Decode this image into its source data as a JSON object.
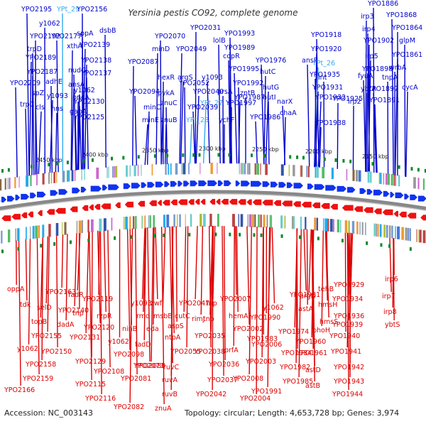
{
  "title": "Yersinia pestis CO92, complete genome",
  "footer": {
    "accession": "Accession: NC_003143",
    "topology": "Topology: circular; Length: 4,653,728 bp; Genes: 3,974"
  },
  "colors": {
    "forward": "#0000cc",
    "reverse": "#dd0000",
    "rna": "#33aaee",
    "backbone": "#888888",
    "marker": "#0a8a2a"
  },
  "scale_labels": [
    "2450 kbp",
    "2400 kbp",
    "2350 kbp",
    "2300 kbp",
    "2250 kbp",
    "2200 kbp",
    "2150 kbp"
  ],
  "top_labels": [
    {
      "t": "YPO2195",
      "c": "f"
    },
    {
      "t": "YPt_29",
      "c": "r"
    },
    {
      "t": "YPO2156",
      "c": "f"
    },
    {
      "t": "y1062",
      "c": "f"
    },
    {
      "t": "sppA",
      "c": "f"
    },
    {
      "t": "dsbB",
      "c": "f"
    },
    {
      "t": "YPO2192",
      "c": "f"
    },
    {
      "t": "YPO2177",
      "c": "f"
    },
    {
      "t": "trpD",
      "c": "f"
    },
    {
      "t": "xthA",
      "c": "f"
    },
    {
      "t": "YPO2139",
      "c": "f"
    },
    {
      "t": "YPO2189",
      "c": "f"
    },
    {
      "t": "YPO2138",
      "c": "f"
    },
    {
      "t": "nudG",
      "c": "f"
    },
    {
      "t": "YPO2187",
      "c": "f"
    },
    {
      "t": "adhE",
      "c": "f"
    },
    {
      "t": "YPO2137",
      "c": "f"
    },
    {
      "t": "YPO2209",
      "c": "f"
    },
    {
      "t": "ansA",
      "c": "f"
    },
    {
      "t": "y1062",
      "c": "f"
    },
    {
      "t": "ispZ",
      "c": "f"
    },
    {
      "t": "y1093",
      "c": "f"
    },
    {
      "t": "pncA",
      "c": "f"
    },
    {
      "t": "YPO2130",
      "c": "f"
    },
    {
      "t": "trpC",
      "c": "f"
    },
    {
      "t": "cls",
      "c": "f"
    },
    {
      "t": "hns",
      "c": "f"
    },
    {
      "t": "gapA",
      "c": "f"
    },
    {
      "t": "YPO2125",
      "c": "f"
    },
    {
      "t": "YPO2070",
      "c": "f"
    },
    {
      "t": "YPO2031",
      "c": "f"
    },
    {
      "t": "YPO1993",
      "c": "f"
    },
    {
      "t": "minD",
      "c": "f"
    },
    {
      "t": "YPO2049",
      "c": "f"
    },
    {
      "t": "lolB",
      "c": "f"
    },
    {
      "t": "YPO1989",
      "c": "f"
    },
    {
      "t": "YPO2087",
      "c": "f"
    },
    {
      "t": "copR",
      "c": "f"
    },
    {
      "t": "YPO1976",
      "c": "f"
    },
    {
      "t": "hexR",
      "c": "f"
    },
    {
      "t": "argS",
      "c": "f"
    },
    {
      "t": "y1093",
      "c": "f"
    },
    {
      "t": "YPO1995",
      "c": "f"
    },
    {
      "t": "hutC",
      "c": "f"
    },
    {
      "t": "YPO2094",
      "c": "f"
    },
    {
      "t": "pykA",
      "c": "f"
    },
    {
      "t": "YPO2052",
      "c": "f"
    },
    {
      "t": "YPO2040",
      "c": "f"
    },
    {
      "t": "prsA",
      "c": "f"
    },
    {
      "t": "YPO1992",
      "c": "f"
    },
    {
      "t": "hutG",
      "c": "f"
    },
    {
      "t": "zntB",
      "c": "f"
    },
    {
      "t": "znuC",
      "c": "f"
    },
    {
      "t": "YPO1987",
      "c": "f"
    },
    {
      "t": "YPO1997",
      "c": "f"
    },
    {
      "t": "minC",
      "c": "f"
    },
    {
      "t": "YPt_27",
      "c": "r"
    },
    {
      "t": "YPO2039",
      "c": "f"
    },
    {
      "t": "hutI",
      "c": "f"
    },
    {
      "t": "narX",
      "c": "f"
    },
    {
      "t": "minE",
      "c": "f"
    },
    {
      "t": "znuB",
      "c": "f"
    },
    {
      "t": "YPt_28",
      "c": "r"
    },
    {
      "t": "ychF",
      "c": "f"
    },
    {
      "t": "YPO1986",
      "c": "f"
    },
    {
      "t": "chaA",
      "c": "f"
    },
    {
      "t": "YPO1886",
      "c": "f"
    },
    {
      "t": "irp3",
      "c": "f"
    },
    {
      "t": "YPO1868",
      "c": "f"
    },
    {
      "t": "irp4",
      "c": "f"
    },
    {
      "t": "YPO1864",
      "c": "f"
    },
    {
      "t": "YPO1918",
      "c": "f"
    },
    {
      "t": "YPO1902",
      "c": "f"
    },
    {
      "t": "glpM",
      "c": "f"
    },
    {
      "t": "YPO1920",
      "c": "f"
    },
    {
      "t": "irp5",
      "c": "f"
    },
    {
      "t": "YPO1861",
      "c": "f"
    },
    {
      "t": "ansP",
      "c": "f"
    },
    {
      "t": "YPt_26",
      "c": "r"
    },
    {
      "t": "YPO1898",
      "c": "f"
    },
    {
      "t": "wrbA",
      "c": "f"
    },
    {
      "t": "YPO1935",
      "c": "f"
    },
    {
      "t": "fyuA",
      "c": "f"
    },
    {
      "t": "tnpA",
      "c": "f"
    },
    {
      "t": "int",
      "c": "f"
    },
    {
      "t": "YPO1931",
      "c": "f"
    },
    {
      "t": "ybtA",
      "c": "f"
    },
    {
      "t": "YPO1897",
      "c": "f"
    },
    {
      "t": "cycA",
      "c": "f"
    },
    {
      "t": "YPO1925",
      "c": "f"
    },
    {
      "t": "irp2",
      "c": "f"
    },
    {
      "t": "YPO1891",
      "c": "f"
    },
    {
      "t": "YPO1932",
      "c": "f"
    },
    {
      "t": "YPO1938",
      "c": "f"
    }
  ],
  "bottom_labels": [
    "oppA",
    "YPO2163",
    "fadR",
    "tdk",
    "selD",
    "YPO2140",
    "topB",
    "dadA",
    "tnp",
    "YPO2119",
    "y1093",
    "zwf",
    "YPO2047",
    "tnp",
    "YPO2007",
    "YPO1981",
    "argD",
    "tehB",
    "YPO1929",
    "irp6",
    "YPO2155",
    "rzpR",
    "rmd",
    "msbB",
    "cutC",
    "rimJ",
    "hemA",
    "y1062",
    "astA",
    "hmsH",
    "YPO1934",
    "irp7",
    "YPO2120",
    "ninB",
    "eda",
    "aspS",
    "tnp",
    "YPO2002",
    "YPO1990",
    "YPO1974",
    "hmsS",
    "YPO1936",
    "irp8",
    "y1062",
    "YPO2131",
    "y1062",
    "fadD",
    "ntpA",
    "YPO2035",
    "YPO1983",
    "phoH",
    "YPO1939",
    "ybtS",
    "YPO2150",
    "YPO2098",
    "YPO2055",
    "YPO2038",
    "prfA",
    "YPO2006",
    "YPO1960",
    "YPO1940",
    "YPO2158",
    "YPO2129",
    "YPO2080",
    "YPO2073",
    "ruvC",
    "YPO2036",
    "YPO2003",
    "YPO1984",
    "YPO1961",
    "YPO1941",
    "YPO2159",
    "YPO2108",
    "YPO2081",
    "ruvA",
    "YPO2037",
    "YPO2008",
    "YPO1982",
    "astD",
    "YPO1942",
    "YPO2166",
    "YPO2115",
    "YPO2116",
    "ruvB",
    "YPO2042",
    "YPO1991",
    "YPO1985",
    "astB",
    "YPO1943",
    "YPO2082",
    "znuA",
    "YPO2004",
    "YPO1944"
  ]
}
